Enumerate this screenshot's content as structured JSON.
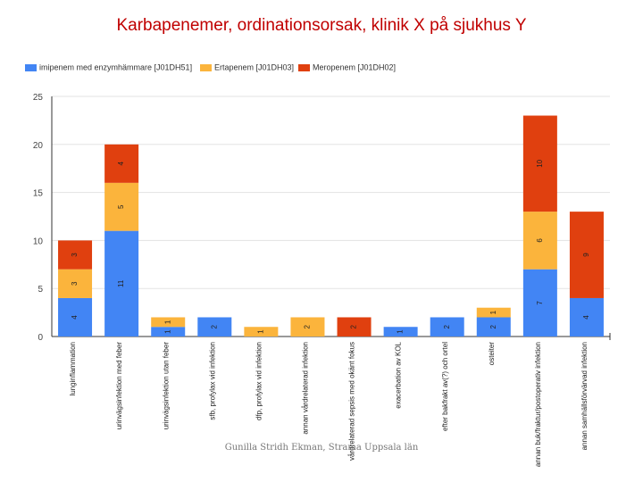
{
  "chart_data": {
    "type": "stacked-bar",
    "title": "Karbapenemer, ordinationsorsak, klinik X på sjukhus Y",
    "categories": [
      "lunginflammation",
      "urinvägsinfektion med feber",
      "urinvägsinfektion utan feber",
      "sfb, profylax vid infektion",
      "dfp, profylax vid infektion",
      "annan vårdrelaterad infektion",
      "vårdrelaterad sepsis med okänt fokus",
      "exacerbation av KOL",
      "efter bakfrakt av(?) och ortel",
      "osteiter",
      "annan buk/fraktur/postoperativ infektion",
      "annan samhällsförvärvad infektion"
    ],
    "series": [
      {
        "name": "imipenem med enzymhämmare [J01DH51]",
        "color": "#4285f4",
        "values": [
          4,
          11,
          1,
          2,
          0,
          0,
          0,
          1,
          2,
          2,
          7,
          4
        ]
      },
      {
        "name": "Ertapenem [J01DH03]",
        "color": "#fbb43c",
        "values": [
          3,
          5,
          1,
          0,
          1,
          2,
          0,
          0,
          0,
          1,
          6,
          0
        ]
      },
      {
        "name": "Meropenem [J01DH02]",
        "color": "#e0400f",
        "values": [
          3,
          4,
          0,
          0,
          0,
          0,
          2,
          0,
          0,
          0,
          10,
          9
        ]
      }
    ],
    "ylim": [
      0,
      25
    ],
    "yticks": [
      0,
      5,
      10,
      15,
      20,
      25
    ],
    "xlabel": "",
    "ylabel": "",
    "legend_position": "top",
    "grid": true
  },
  "footer": "Gunilla Stridh Ekman, Strama Uppsala län"
}
